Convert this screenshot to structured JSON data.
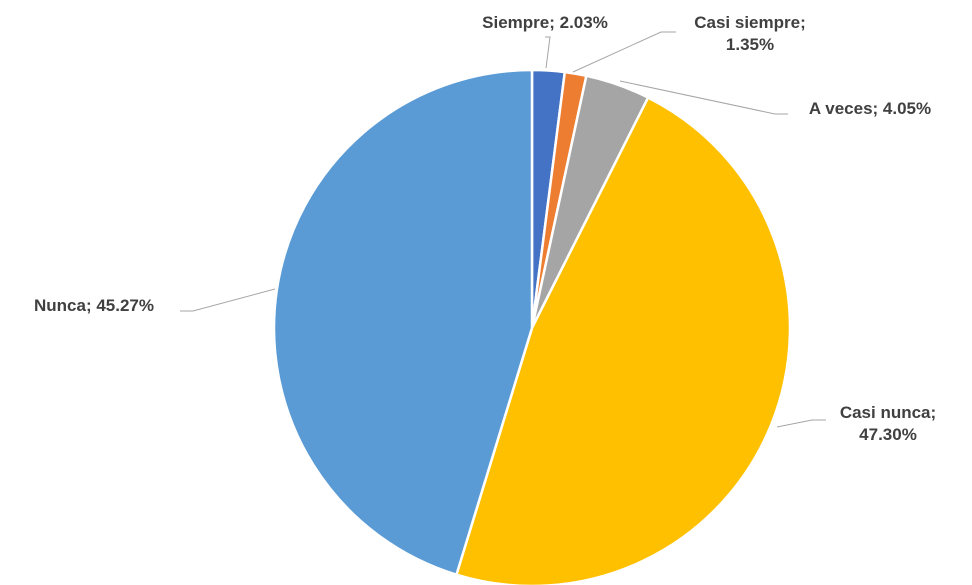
{
  "chart_data": {
    "type": "pie",
    "title": "",
    "start_angle_deg": 0,
    "direction": "clockwise",
    "slices": [
      {
        "name": "Siempre",
        "value": 2.03,
        "label": "Siempre; 2.03%",
        "label_lines": [
          "Siempre; 2.03%"
        ],
        "color": "#4472c4"
      },
      {
        "name": "Casi siempre",
        "value": 1.35,
        "label": "Casi siempre; 1.35%",
        "label_lines": [
          "Casi siempre;",
          "1.35%"
        ],
        "color": "#ed7d31"
      },
      {
        "name": "A veces",
        "value": 4.05,
        "label": "A veces; 4.05%",
        "label_lines": [
          "A veces; 4.05%"
        ],
        "color": "#a5a5a5"
      },
      {
        "name": "Casi nunca",
        "value": 47.3,
        "label": "Casi nunca; 47.30%",
        "label_lines": [
          "Casi nunca;",
          "47.30%"
        ],
        "color": "#ffc000"
      },
      {
        "name": "Nunca",
        "value": 45.27,
        "label": "Nunca; 45.27%",
        "label_lines": [
          "Nunca; 45.27%"
        ],
        "color": "#5b9bd5"
      }
    ],
    "legend": "none",
    "data_labels": "outside-with-leader-lines"
  }
}
